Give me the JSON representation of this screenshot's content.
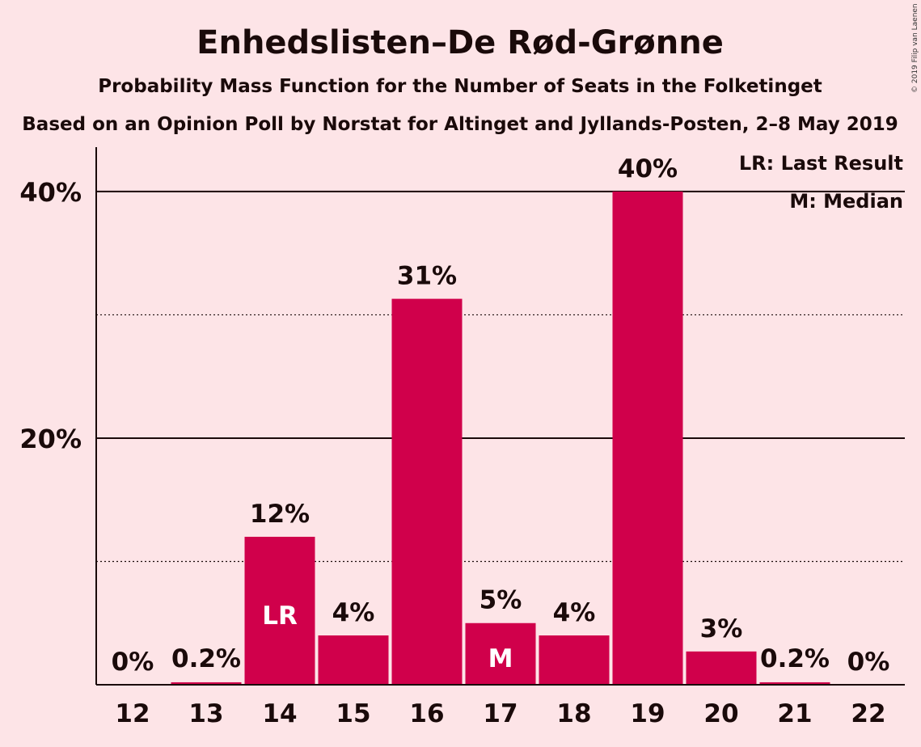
{
  "colors": {
    "background": "#FDE4E7",
    "bar": "#D0004B",
    "text": "#1a0a0a",
    "inner_label": "#ffffff"
  },
  "chart_data": {
    "type": "bar",
    "title": "Enhedslisten–De Rød-Grønne",
    "subtitle": "Probability Mass Function for the Number of Seats in the Folketinget",
    "subtitle2": "Based on an Opinion Poll by Norstat for Altinget and Jyllands-Posten, 2–8 May 2019",
    "copyright": "© 2019 Filip van Laenen",
    "legend": [
      "LR: Last Result",
      "M: Median"
    ],
    "legend_placement": "top-right",
    "categories": [
      "12",
      "13",
      "14",
      "15",
      "16",
      "17",
      "18",
      "19",
      "20",
      "21",
      "22"
    ],
    "values": [
      0,
      0.2,
      12,
      4,
      31.3,
      5,
      4,
      40,
      2.7,
      0.2,
      0
    ],
    "data_labels": [
      "0%",
      "0.2%",
      "12%",
      "4%",
      "31%",
      "5%",
      "4%",
      "40%",
      "3%",
      "0.2%",
      "0%"
    ],
    "inner_labels": {
      "14": "LR",
      "17": "M"
    },
    "last_result": "14",
    "median": "17",
    "ylim": [
      0,
      43.6
    ],
    "yticks": [
      {
        "value": 20,
        "label": "20%"
      },
      {
        "value": 40,
        "label": "40%"
      }
    ],
    "minor_gridlines": [
      10,
      30
    ],
    "xlabel": "",
    "ylabel": ""
  }
}
